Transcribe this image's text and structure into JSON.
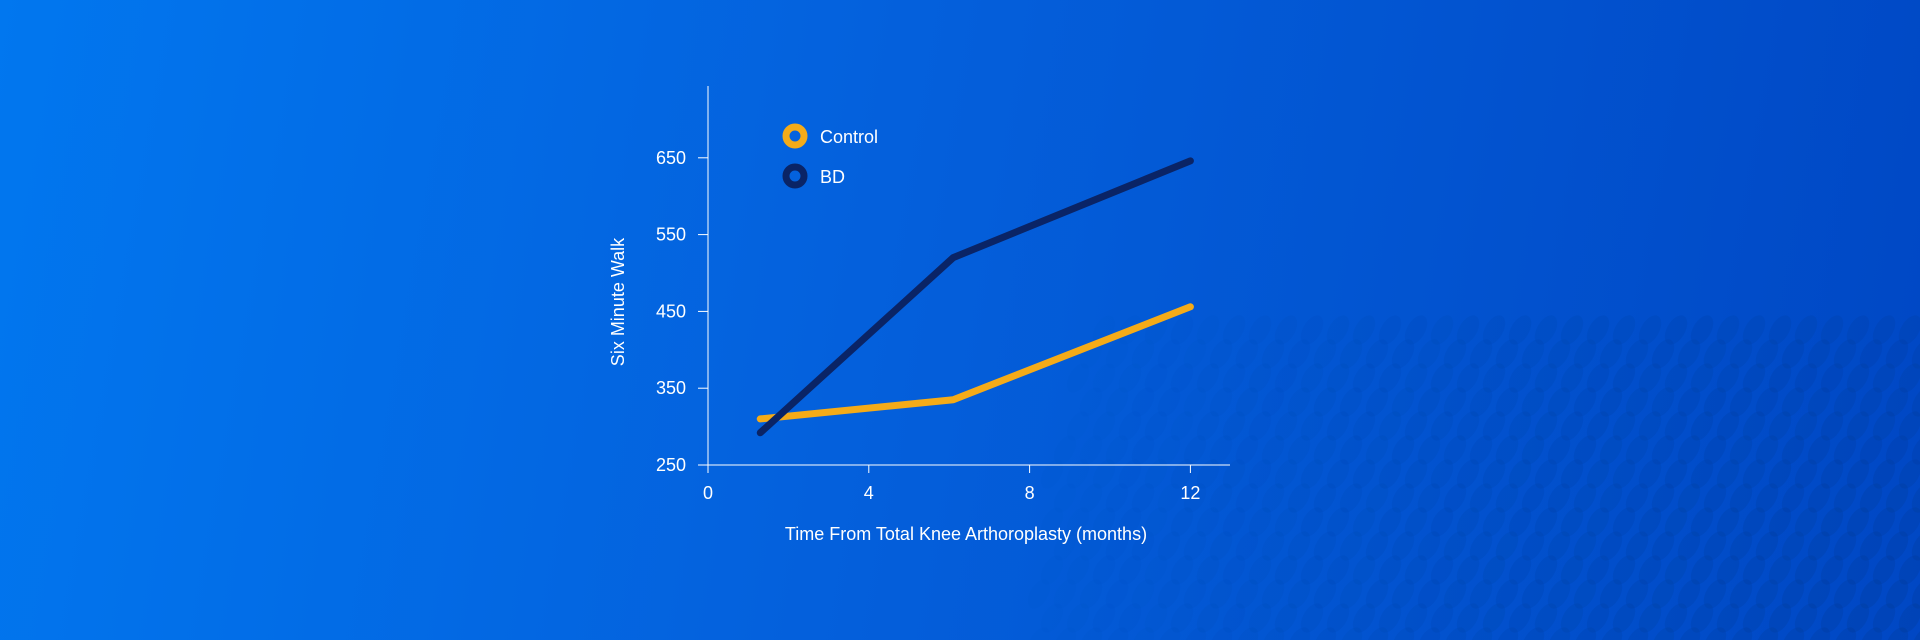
{
  "chart_data": {
    "type": "line",
    "xlabel": "Time From Total Knee Arthoroplasty (months)",
    "ylabel": "Six Minute Walk",
    "xlim": [
      0,
      13
    ],
    "ylim": [
      250,
      750
    ],
    "x_ticks": [
      0,
      4,
      8,
      12
    ],
    "y_ticks": [
      250,
      350,
      450,
      550,
      650
    ],
    "grid": false,
    "legend_position": "top-left",
    "series": [
      {
        "name": "Control",
        "color": "#f5ab18",
        "x": [
          1.3,
          6.1,
          12
        ],
        "y": [
          310,
          335,
          456
        ]
      },
      {
        "name": "BD",
        "color": "#0a2466",
        "x": [
          1.3,
          6.1,
          12
        ],
        "y": [
          292,
          520,
          646
        ]
      }
    ]
  }
}
